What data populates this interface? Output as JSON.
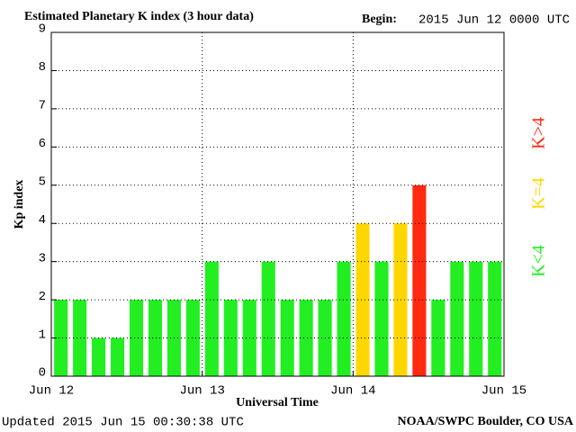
{
  "chart_data": {
    "type": "bar",
    "title": "Estimated Planetary K index (3 hour data)",
    "begin_label": "Begin:",
    "begin": "2015 Jun 12 0000 UTC",
    "y_label": "Kp index",
    "x_label": "Universal Time",
    "updated": "Updated 2015 Jun 15 00:30:38 UTC",
    "source": "NOAA/SWPC Boulder, CO USA",
    "x": [
      0,
      3,
      6,
      9,
      12,
      15,
      18,
      21,
      24,
      27,
      30,
      33,
      36,
      39,
      42,
      45,
      48,
      51,
      54,
      57,
      60,
      63,
      66,
      69
    ],
    "values": [
      2,
      2,
      1,
      1,
      2,
      2,
      2,
      2,
      3,
      2,
      2,
      3,
      2,
      2,
      2,
      3,
      4,
      3,
      4,
      5,
      2,
      3,
      3,
      3
    ],
    "colors": [
      "#22ee22",
      "#22ee22",
      "#22ee22",
      "#22ee22",
      "#22ee22",
      "#22ee22",
      "#22ee22",
      "#22ee22",
      "#22ee22",
      "#22ee22",
      "#22ee22",
      "#22ee22",
      "#22ee22",
      "#22ee22",
      "#22ee22",
      "#22ee22",
      "#ffd700",
      "#22ee22",
      "#ffd700",
      "#ff2a10",
      "#22ee22",
      "#22ee22",
      "#22ee22",
      "#22ee22"
    ],
    "xlim": [
      0,
      72
    ],
    "xticks": [
      {
        "value": 0,
        "label": "Jun 12"
      },
      {
        "value": 24,
        "label": "Jun 13"
      },
      {
        "value": 48,
        "label": "Jun 14"
      },
      {
        "value": 72,
        "label": "Jun 15"
      }
    ],
    "ylim": [
      0,
      9
    ],
    "yticks": [
      0,
      1,
      2,
      3,
      4,
      5,
      6,
      7,
      8,
      9
    ],
    "grid": true,
    "legend": [
      {
        "label": "K<4",
        "color": "#22ee22"
      },
      {
        "label": "K=4",
        "color": "#ffd700"
      },
      {
        "label": "K>4",
        "color": "#ff2a10"
      }
    ]
  }
}
